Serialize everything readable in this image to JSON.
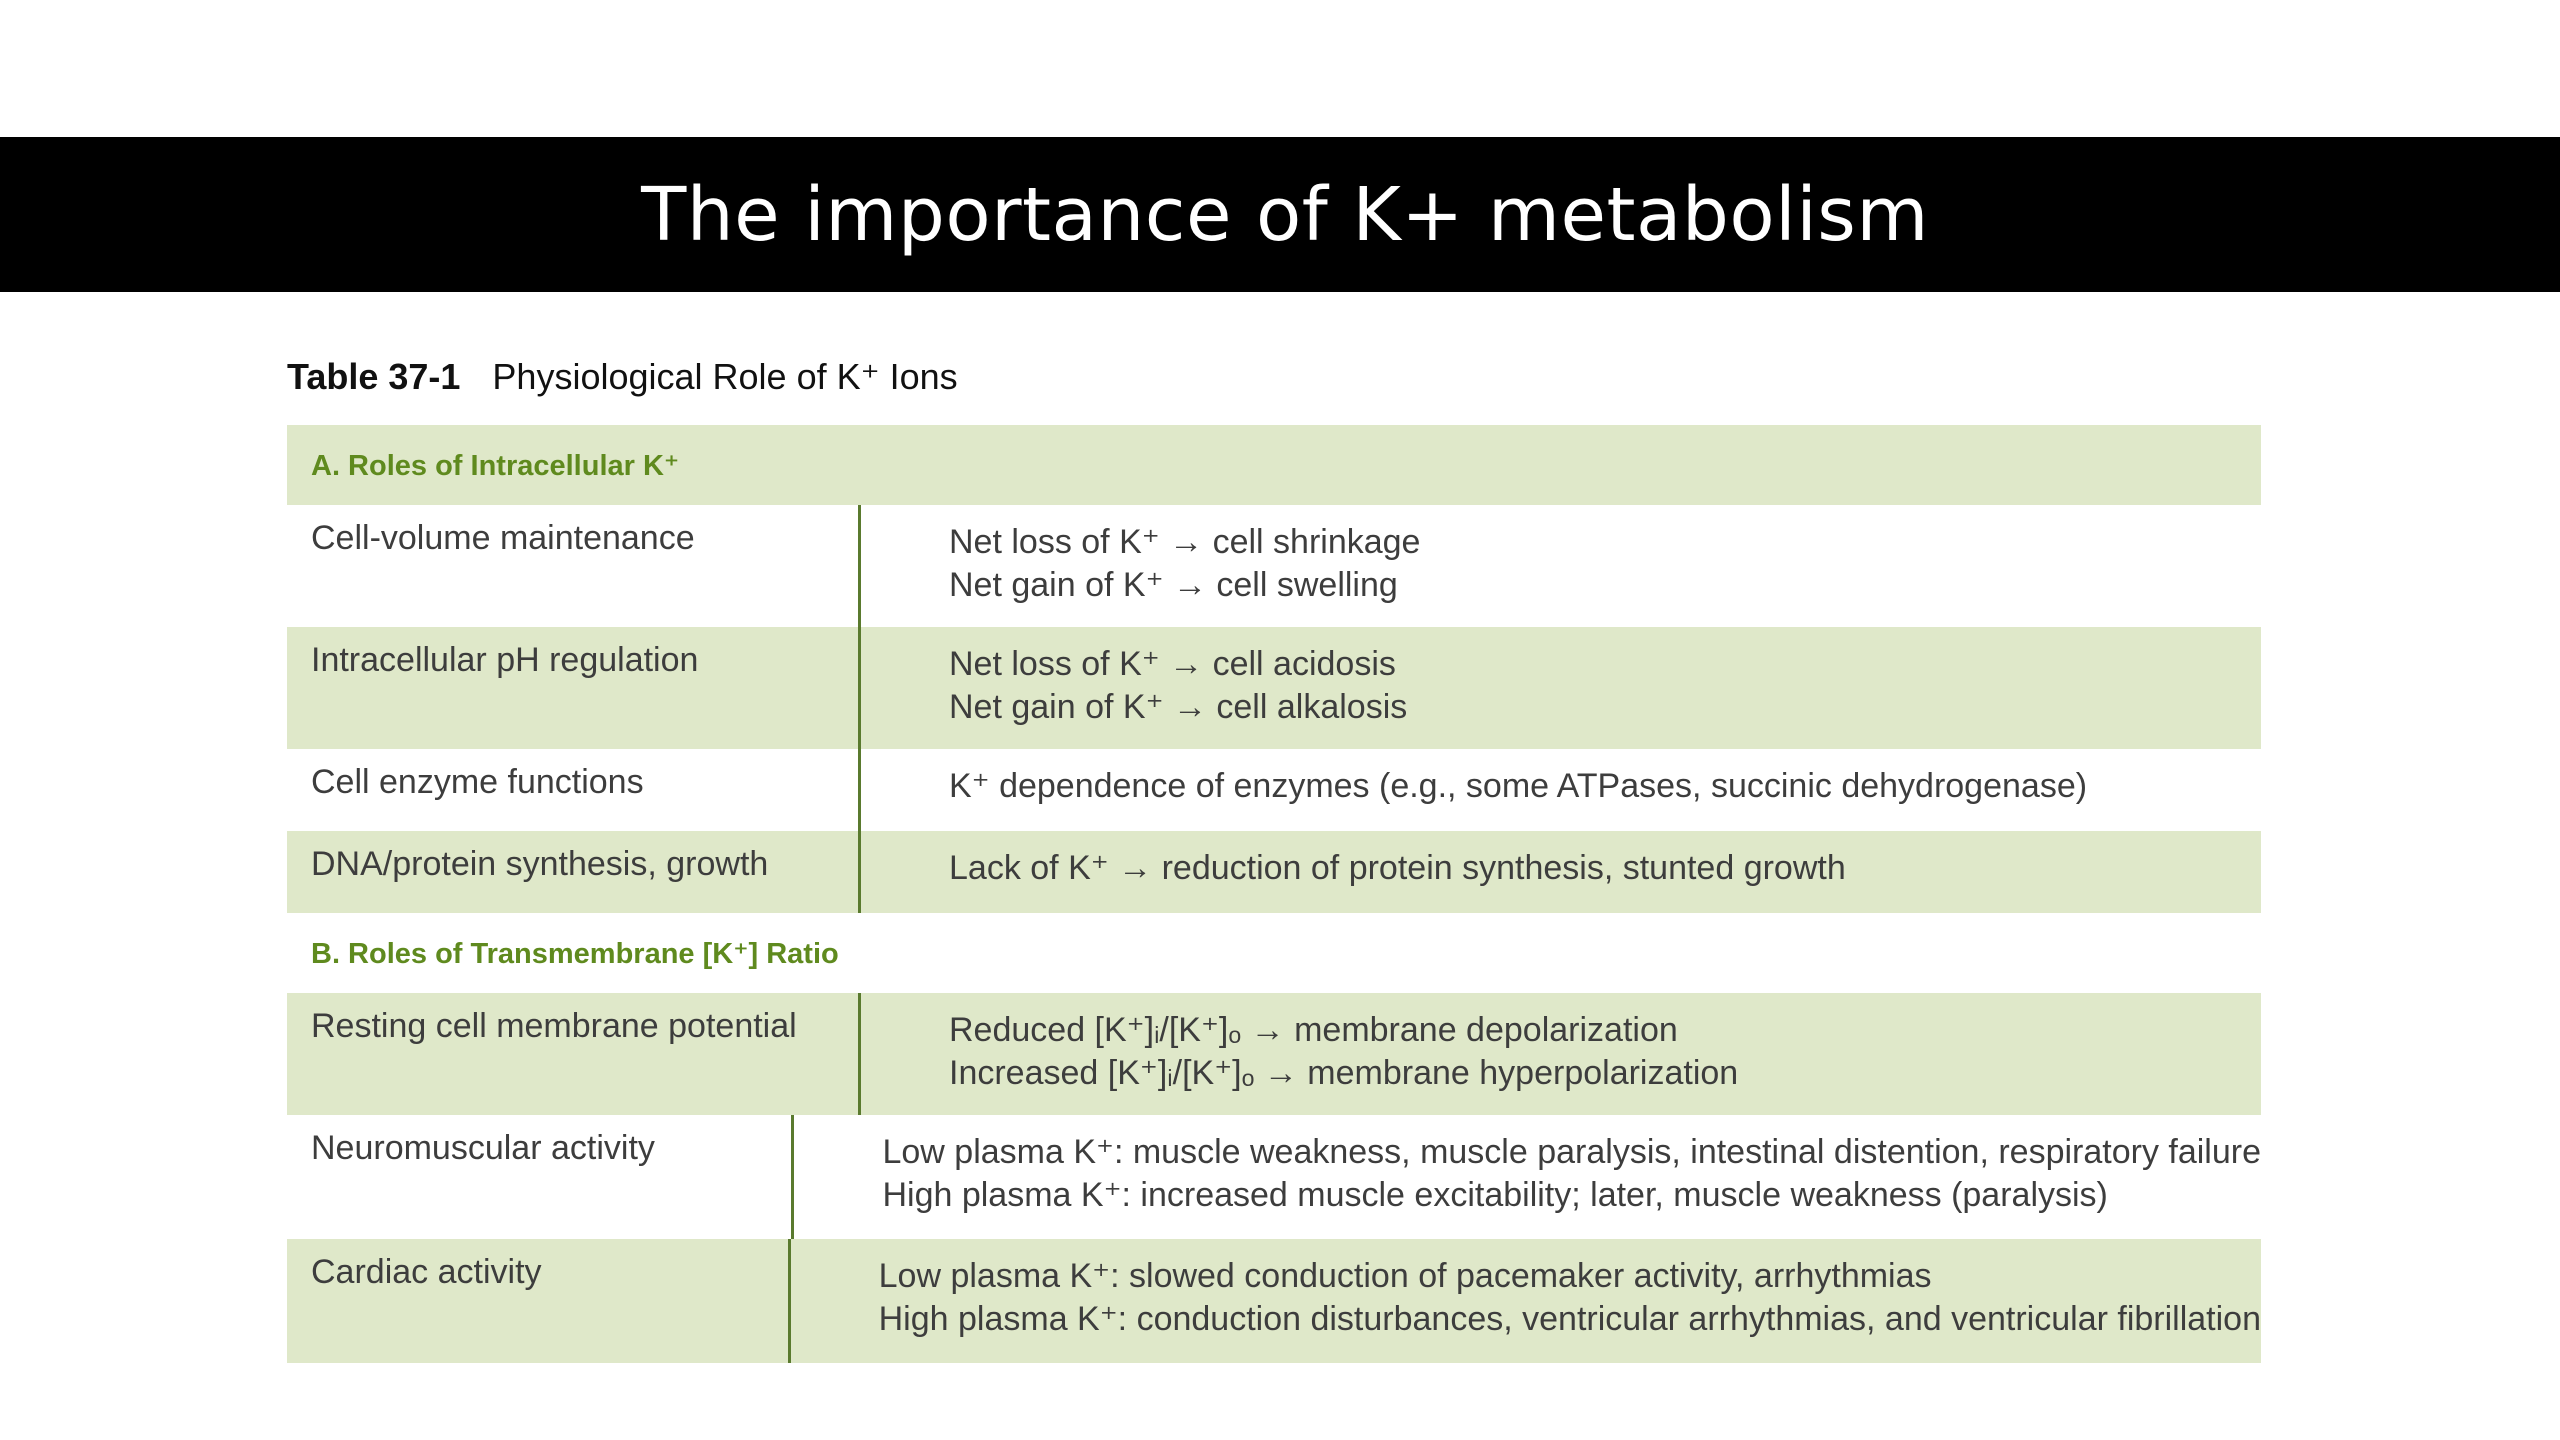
{
  "slide": {
    "title": "The importance of K+ metabolism"
  },
  "table": {
    "number": "Table 37-1",
    "caption": "Physiological Role of K⁺ Ions",
    "sections": [
      {
        "heading": "A. Roles of Intracellular K⁺",
        "rows": [
          {
            "label": "Cell-volume maintenance",
            "lines": [
              "Net loss of K⁺ → cell shrinkage",
              "Net gain of K⁺ → cell swelling"
            ]
          },
          {
            "label": "Intracellular pH regulation",
            "lines": [
              "Net loss of K⁺ → cell acidosis",
              "Net gain of K⁺ → cell alkalosis"
            ]
          },
          {
            "label": "Cell enzyme functions",
            "lines": [
              "K⁺ dependence of enzymes (e.g., some ATPases, succinic dehydrogenase)"
            ]
          },
          {
            "label": "DNA/protein synthesis, growth",
            "lines": [
              "Lack of K⁺ → reduction of protein synthesis, stunted growth"
            ]
          }
        ]
      },
      {
        "heading": "B. Roles of Transmembrane [K⁺] Ratio",
        "rows": [
          {
            "label": "Resting cell membrane potential",
            "lines": [
              "Reduced [K⁺]ᵢ/[K⁺]ₒ → membrane depolarization",
              "Increased [K⁺]ᵢ/[K⁺]ₒ → membrane hyperpolarization"
            ]
          },
          {
            "label": "Neuromuscular activity",
            "lines": [
              "Low plasma K⁺: muscle weakness, muscle paralysis, intestinal distention, respiratory failure",
              "High plasma K⁺: increased muscle excitability; later, muscle weakness (paralysis)"
            ]
          },
          {
            "label": "Cardiac activity",
            "lines": [
              "Low plasma K⁺: slowed conduction of pacemaker activity, arrhythmias",
              "High plasma K⁺: conduction disturbances, ventricular arrhythmias, and ventricular fibrillation"
            ]
          }
        ]
      }
    ]
  },
  "colors": {
    "title_bar": "#000000",
    "title_text": "#ffffff",
    "row_shade": "#dfe8c9",
    "section_heading": "#5f8a1e",
    "divider": "#5a7a2e"
  }
}
